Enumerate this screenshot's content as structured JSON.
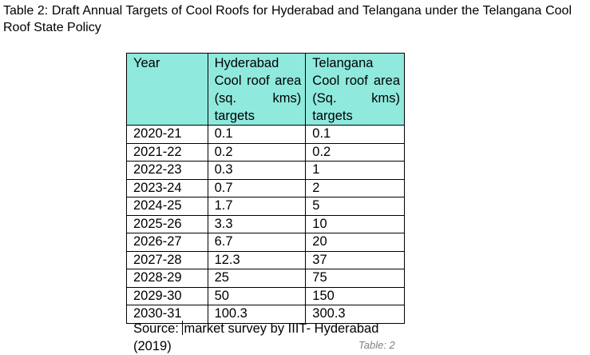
{
  "caption": "Table 2: Draft Annual Targets of Cool Roofs for Hyderabad and Telangana under the Telangana Cool Roof State Policy",
  "table": {
    "headers": [
      "Year",
      "Hyderabad Cool roof area (sq. kms) targets",
      "Telangana Cool roof area (Sq. kms) targets"
    ],
    "rows": [
      [
        "2020-21",
        "0.1",
        "0.1"
      ],
      [
        "2021-22",
        "0.2",
        "0.2"
      ],
      [
        "2022-23",
        "0.3",
        "1"
      ],
      [
        "2023-24",
        "0.7",
        "2"
      ],
      [
        "2024-25",
        "1.7",
        "5"
      ],
      [
        "2025-26",
        "3.3",
        "10"
      ],
      [
        "2026-27",
        "6.7",
        "20"
      ],
      [
        "2027-28",
        "12.3",
        "37"
      ],
      [
        "2028-29",
        "25",
        "75"
      ],
      [
        "2029-30",
        "50",
        "150"
      ],
      [
        "2030-31",
        "100.3",
        "300.3"
      ]
    ],
    "header_color": "#8fe9dd"
  },
  "source": {
    "prefix": "Source: ",
    "text": "market survey by IIIT- Hyderabad (2019)"
  },
  "table_label": "Table: 2"
}
